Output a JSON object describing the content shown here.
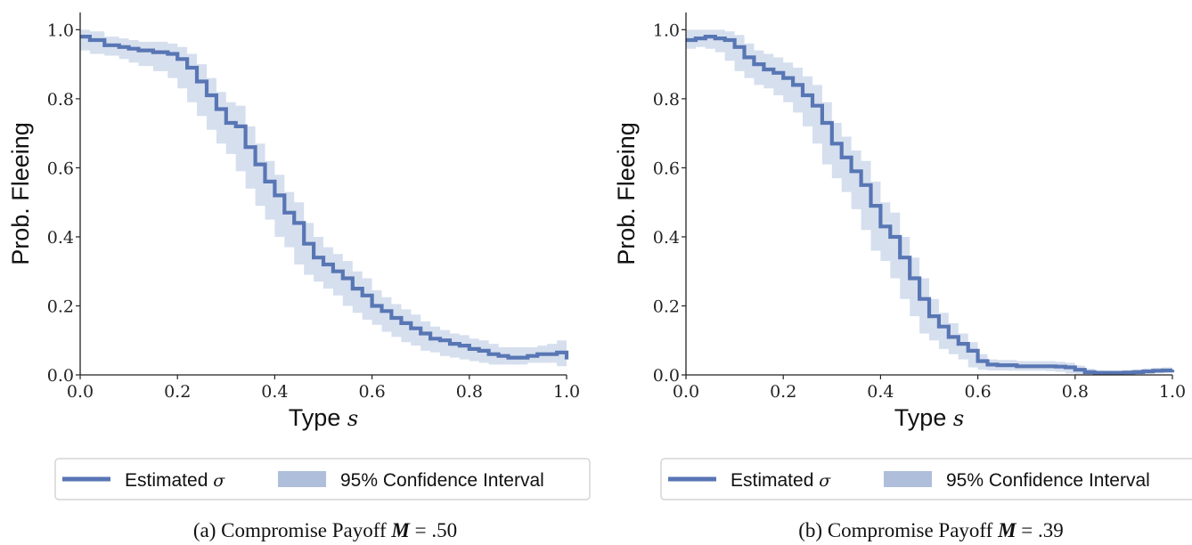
{
  "colors": {
    "line": "#5876b4",
    "band": "#d6dfee",
    "legend_band": "#aebedb"
  },
  "chart_data": [
    {
      "type": "line",
      "caption": "(a) Compromise Payoff M = .50",
      "caption_prefix": "(a) Compromise Payoff ",
      "caption_symbol": "M",
      "caption_suffix": " = .50",
      "xlabel": "Type",
      "xlabel_symbol": "s",
      "ylabel": "Prob. Fleeing",
      "xlim": [
        0,
        1
      ],
      "ylim": [
        0,
        1.05
      ],
      "xticks": [
        "0.0",
        "0.2",
        "0.4",
        "0.6",
        "0.8",
        "1.0"
      ],
      "yticks": [
        "0.0",
        "0.2",
        "0.4",
        "0.6",
        "0.8",
        "1.0"
      ],
      "legend": {
        "line": "Estimated",
        "line_symbol": "σ",
        "band": "95% Confidence Interval",
        "placement": "bottom"
      },
      "series": [
        {
          "x": [
            0.0,
            0.02,
            0.05,
            0.08,
            0.1,
            0.12,
            0.15,
            0.18,
            0.2,
            0.22,
            0.24,
            0.26,
            0.28,
            0.3,
            0.32,
            0.34,
            0.36,
            0.38,
            0.4,
            0.42,
            0.44,
            0.46,
            0.48,
            0.5,
            0.52,
            0.54,
            0.56,
            0.58,
            0.6,
            0.62,
            0.64,
            0.66,
            0.68,
            0.7,
            0.72,
            0.74,
            0.76,
            0.78,
            0.8,
            0.82,
            0.84,
            0.86,
            0.88,
            0.9,
            0.92,
            0.94,
            0.96,
            0.98,
            1.0
          ],
          "y": [
            0.98,
            0.97,
            0.955,
            0.95,
            0.945,
            0.94,
            0.935,
            0.93,
            0.915,
            0.89,
            0.85,
            0.81,
            0.77,
            0.73,
            0.72,
            0.66,
            0.61,
            0.56,
            0.52,
            0.47,
            0.44,
            0.38,
            0.34,
            0.32,
            0.3,
            0.28,
            0.25,
            0.23,
            0.2,
            0.185,
            0.165,
            0.15,
            0.135,
            0.12,
            0.105,
            0.1,
            0.09,
            0.085,
            0.075,
            0.07,
            0.06,
            0.055,
            0.05,
            0.05,
            0.055,
            0.06,
            0.06,
            0.065,
            0.045
          ],
          "lower": [
            0.95,
            0.94,
            0.93,
            0.925,
            0.915,
            0.905,
            0.895,
            0.88,
            0.86,
            0.83,
            0.79,
            0.75,
            0.71,
            0.67,
            0.64,
            0.59,
            0.54,
            0.49,
            0.45,
            0.4,
            0.37,
            0.32,
            0.29,
            0.27,
            0.25,
            0.23,
            0.2,
            0.18,
            0.16,
            0.145,
            0.125,
            0.11,
            0.095,
            0.085,
            0.07,
            0.065,
            0.055,
            0.05,
            0.045,
            0.04,
            0.035,
            0.03,
            0.03,
            0.03,
            0.03,
            0.035,
            0.035,
            0.035,
            0.025
          ],
          "upper": [
            1.0,
            0.995,
            0.98,
            0.975,
            0.97,
            0.965,
            0.965,
            0.96,
            0.95,
            0.93,
            0.9,
            0.86,
            0.82,
            0.79,
            0.78,
            0.72,
            0.67,
            0.62,
            0.58,
            0.53,
            0.5,
            0.44,
            0.4,
            0.37,
            0.35,
            0.33,
            0.3,
            0.28,
            0.245,
            0.225,
            0.205,
            0.19,
            0.175,
            0.155,
            0.14,
            0.13,
            0.12,
            0.115,
            0.105,
            0.1,
            0.09,
            0.08,
            0.08,
            0.08,
            0.08,
            0.085,
            0.09,
            0.1,
            0.075
          ]
        }
      ]
    },
    {
      "type": "line",
      "caption": "(b) Compromise Payoff M = .39",
      "caption_prefix": "(b) Compromise Payoff ",
      "caption_symbol": "M",
      "caption_suffix": " = .39",
      "xlabel": "Type",
      "xlabel_symbol": "s",
      "ylabel": "Prob. Fleeing",
      "xlim": [
        0,
        1
      ],
      "ylim": [
        0,
        1.05
      ],
      "xticks": [
        "0.0",
        "0.2",
        "0.4",
        "0.6",
        "0.8",
        "1.0"
      ],
      "yticks": [
        "0.0",
        "0.2",
        "0.4",
        "0.6",
        "0.8",
        "1.0"
      ],
      "legend": {
        "line": "Estimated",
        "line_symbol": "σ",
        "band": "95% Confidence Interval",
        "placement": "bottom"
      },
      "series": [
        {
          "x": [
            0.0,
            0.02,
            0.04,
            0.06,
            0.08,
            0.1,
            0.12,
            0.14,
            0.16,
            0.18,
            0.2,
            0.22,
            0.24,
            0.26,
            0.28,
            0.3,
            0.32,
            0.34,
            0.36,
            0.38,
            0.4,
            0.42,
            0.44,
            0.46,
            0.48,
            0.5,
            0.52,
            0.54,
            0.56,
            0.58,
            0.6,
            0.62,
            0.64,
            0.66,
            0.68,
            0.7,
            0.72,
            0.74,
            0.76,
            0.78,
            0.8,
            0.82,
            0.84,
            0.86,
            0.88,
            0.9,
            0.92,
            0.94,
            0.96,
            0.98,
            1.0
          ],
          "y": [
            0.97,
            0.975,
            0.98,
            0.975,
            0.97,
            0.95,
            0.92,
            0.9,
            0.885,
            0.875,
            0.86,
            0.84,
            0.81,
            0.78,
            0.73,
            0.67,
            0.63,
            0.59,
            0.55,
            0.49,
            0.43,
            0.4,
            0.34,
            0.28,
            0.22,
            0.17,
            0.14,
            0.11,
            0.09,
            0.07,
            0.04,
            0.03,
            0.028,
            0.028,
            0.025,
            0.025,
            0.025,
            0.025,
            0.024,
            0.022,
            0.015,
            0.008,
            0.006,
            0.006,
            0.006,
            0.007,
            0.008,
            0.01,
            0.012,
            0.013,
            0.015
          ],
          "lower": [
            0.94,
            0.945,
            0.95,
            0.945,
            0.935,
            0.91,
            0.88,
            0.86,
            0.84,
            0.83,
            0.81,
            0.79,
            0.76,
            0.72,
            0.67,
            0.61,
            0.57,
            0.53,
            0.48,
            0.42,
            0.36,
            0.33,
            0.28,
            0.22,
            0.17,
            0.12,
            0.1,
            0.075,
            0.06,
            0.045,
            0.022,
            0.015,
            0.013,
            0.013,
            0.012,
            0.012,
            0.012,
            0.012,
            0.011,
            0.009,
            0.004,
            0.0,
            0.0,
            0.0,
            0.0,
            0.0,
            0.0,
            0.002,
            0.004,
            0.005,
            0.006
          ],
          "upper": [
            1.0,
            1.0,
            1.0,
            1.0,
            0.995,
            0.985,
            0.96,
            0.94,
            0.93,
            0.92,
            0.905,
            0.89,
            0.865,
            0.84,
            0.79,
            0.73,
            0.69,
            0.65,
            0.62,
            0.56,
            0.5,
            0.47,
            0.4,
            0.34,
            0.28,
            0.22,
            0.18,
            0.15,
            0.12,
            0.095,
            0.06,
            0.045,
            0.043,
            0.043,
            0.04,
            0.04,
            0.04,
            0.04,
            0.038,
            0.035,
            0.027,
            0.018,
            0.014,
            0.013,
            0.013,
            0.014,
            0.016,
            0.019,
            0.021,
            0.022,
            0.025
          ]
        }
      ]
    }
  ]
}
